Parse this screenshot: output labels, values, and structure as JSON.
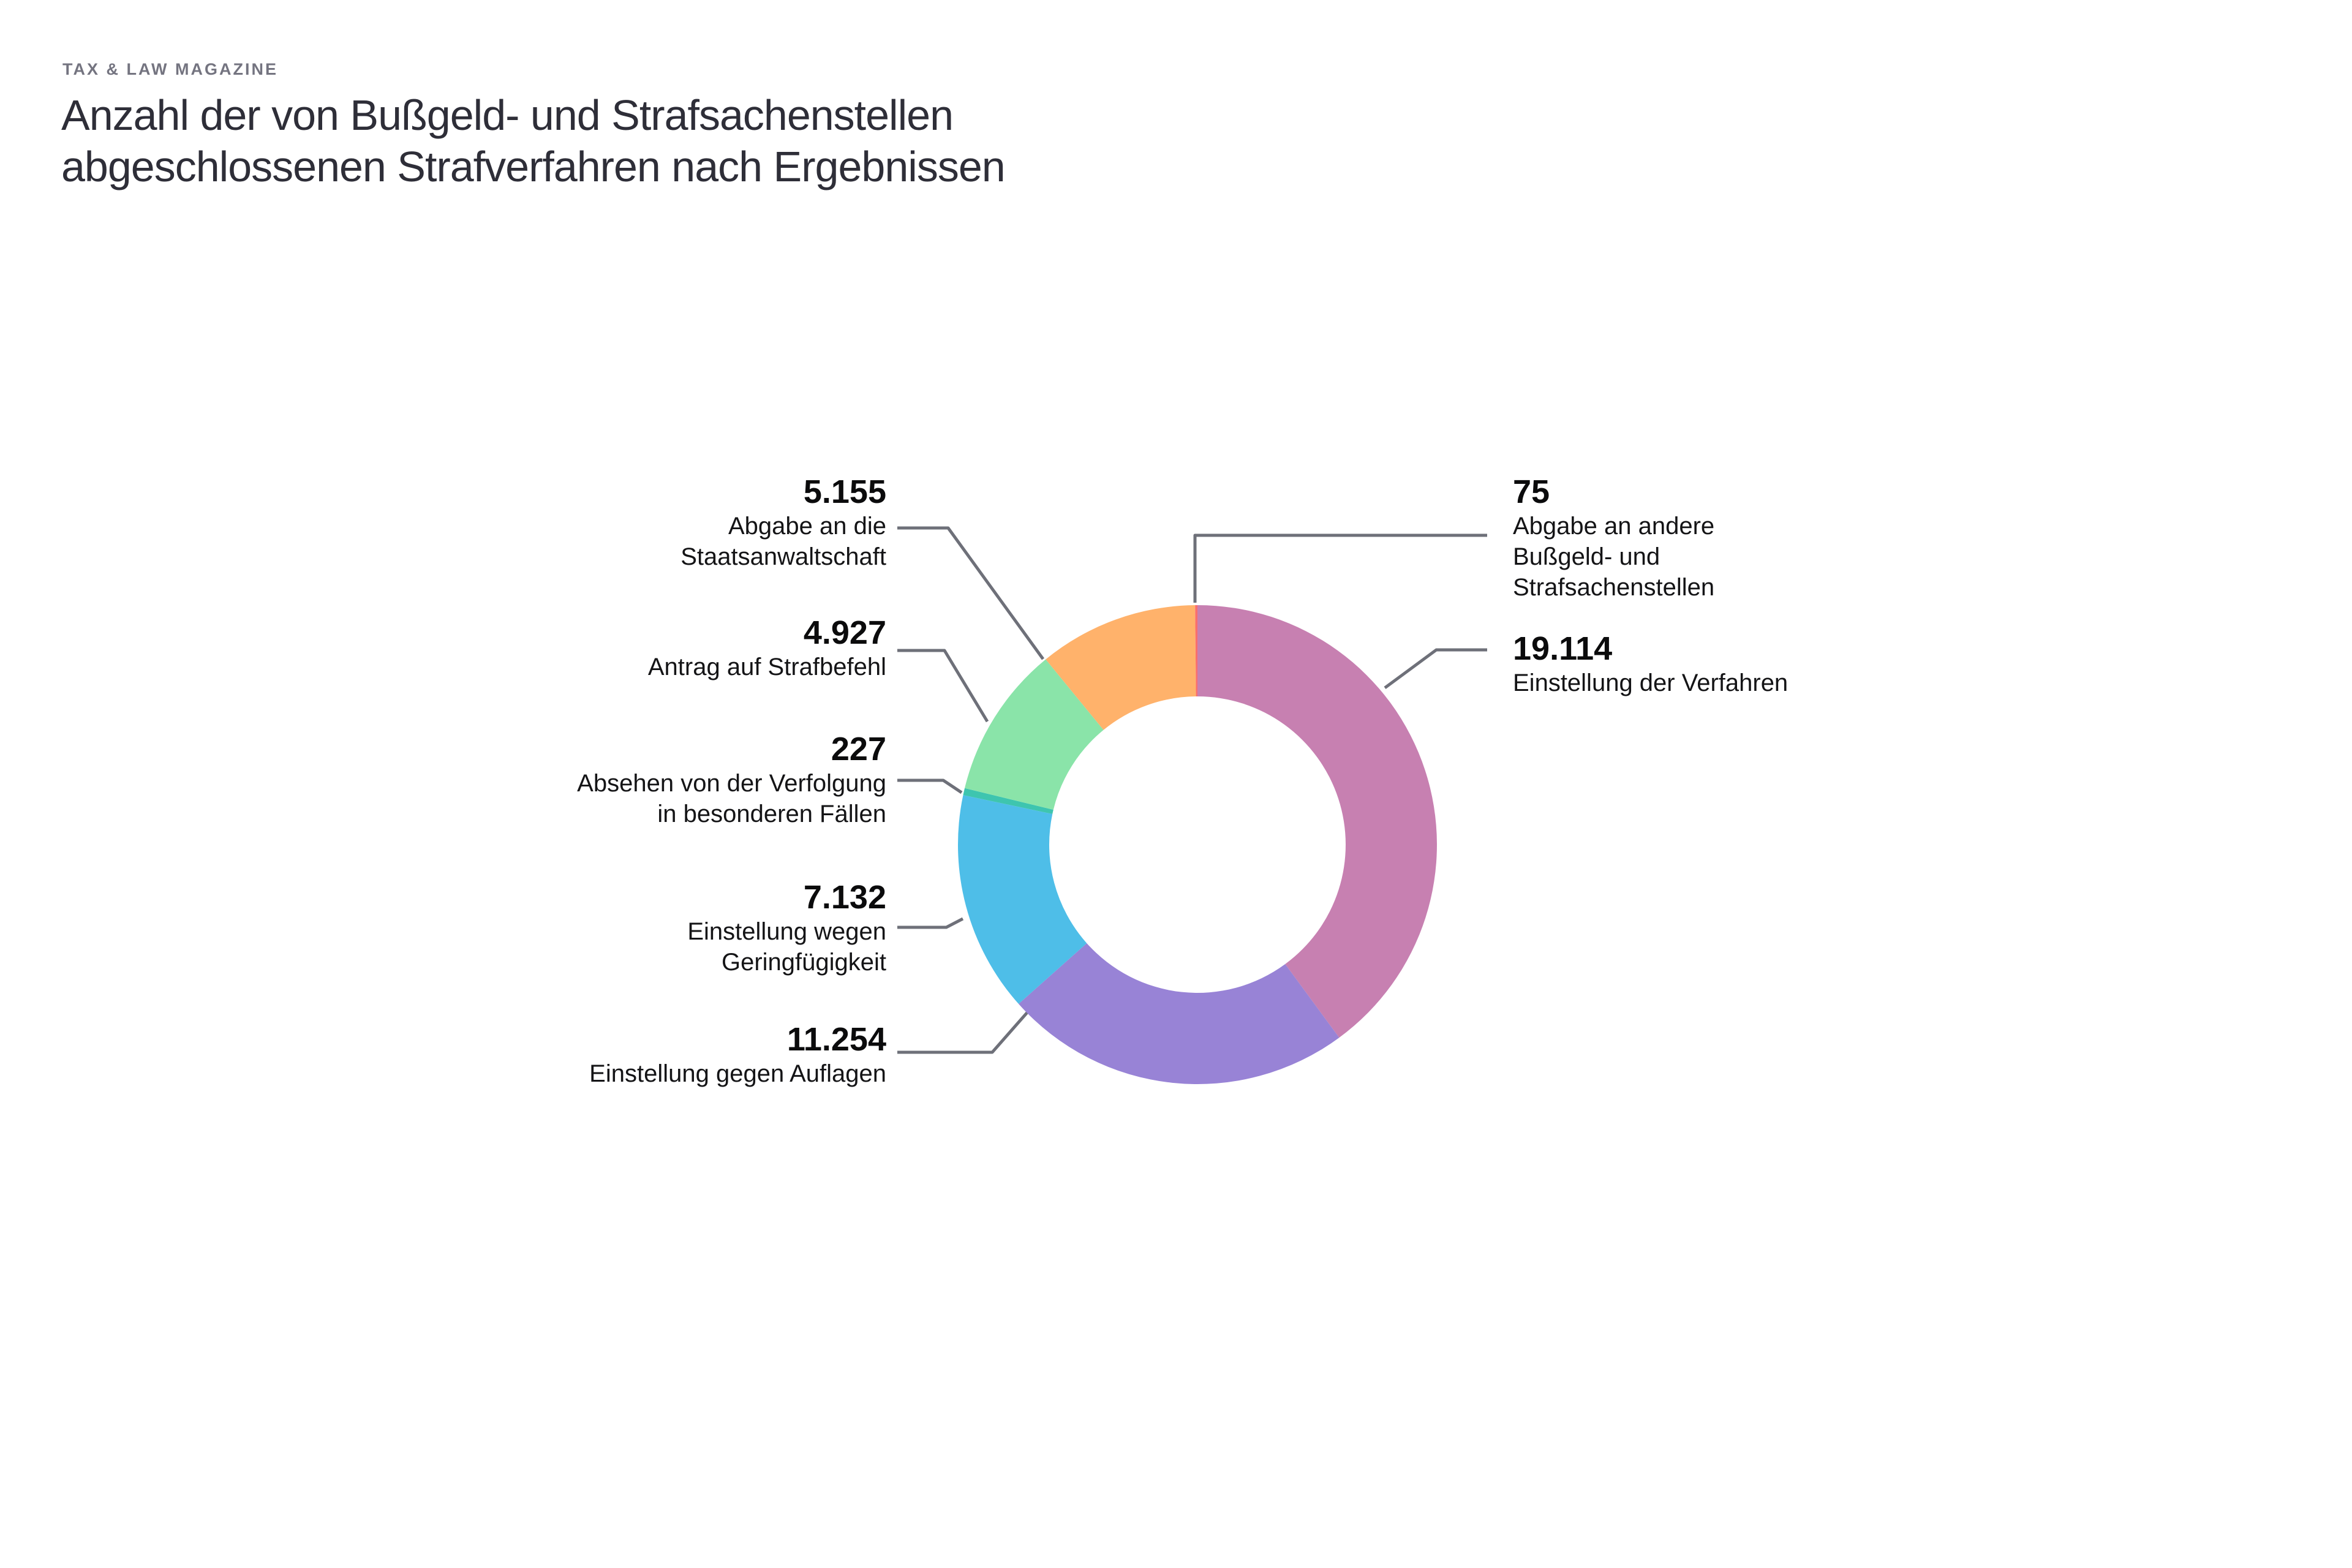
{
  "page": {
    "eyebrow": "TAX & LAW MAGAZINE",
    "title_lines": [
      "Anzahl der von Bußgeld- und Strafsachenstellen",
      "abgeschlossenen Strafverfahren nach Ergebnissen"
    ]
  },
  "colors": {
    "background": "#ffffff",
    "eyebrow_text": "#747480",
    "title_text": "#2e2e38",
    "leader_line": "#6e7079"
  },
  "chart_data": {
    "type": "pie",
    "subtype": "donut",
    "title": "Anzahl der von Bußgeld- und Strafsachenstellen abgeschlossenen Strafverfahren nach Ergebnissen",
    "direction": "clockwise",
    "start_angle_deg": 0,
    "legend_position": "callouts",
    "slices": [
      {
        "label": "Einstellung der Verfahren",
        "label_lines": [
          "Einstellung der Verfahren"
        ],
        "value": 19114,
        "value_label": "19.114",
        "color": "#c780b1",
        "side": "right"
      },
      {
        "label": "Einstellung gegen Auflagen",
        "label_lines": [
          "Einstellung gegen Auflagen"
        ],
        "value": 11254,
        "value_label": "11.254",
        "color": "#9883d6",
        "side": "left"
      },
      {
        "label": "Einstellung wegen Geringfügigkeit",
        "label_lines": [
          "Einstellung wegen",
          "Geringfügigkeit"
        ],
        "value": 7132,
        "value_label": "7.132",
        "color": "#4ebee8",
        "side": "left"
      },
      {
        "label": "Absehen von der Verfolgung in besonderen Fällen",
        "label_lines": [
          "Absehen von der Verfolgung",
          "in besonderen Fällen"
        ],
        "value": 227,
        "value_label": "227",
        "color": "#3ec5af",
        "side": "left"
      },
      {
        "label": "Antrag auf Strafbefehl",
        "label_lines": [
          "Antrag auf Strafbefehl"
        ],
        "value": 4927,
        "value_label": "4.927",
        "color": "#8ae4a9",
        "side": "left"
      },
      {
        "label": "Abgabe an die Staatsanwaltschaft",
        "label_lines": [
          "Abgabe an die",
          "Staatsanwaltschaft"
        ],
        "value": 5155,
        "value_label": "5.155",
        "color": "#ffb26b",
        "side": "left"
      },
      {
        "label": "Abgabe an andere Bußgeld- und Strafsachenstellen",
        "label_lines": [
          "Abgabe an andere",
          "Bußgeld- und",
          "Strafsachenstellen"
        ],
        "value": 75,
        "value_label": "75",
        "color": "#fa6f6b",
        "side": "right"
      }
    ]
  }
}
